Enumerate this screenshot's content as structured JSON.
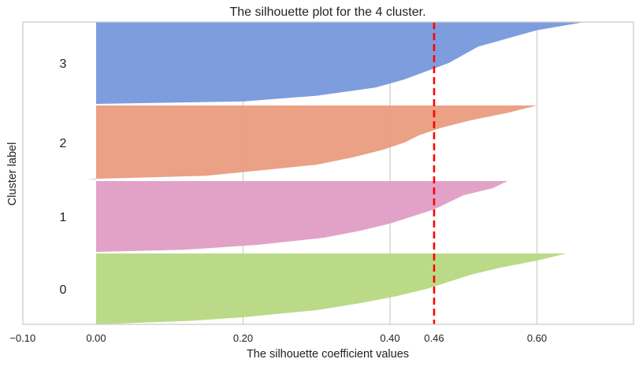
{
  "chart_data": {
    "type": "area",
    "title": "The silhouette plot for the 4 cluster.",
    "xlabel": "The silhouette coefficient values",
    "ylabel": "Cluster label",
    "xlim": [
      -0.1,
      0.74
    ],
    "xticks": [
      {
        "value": -0.1,
        "label": "−0.10"
      },
      {
        "value": 0.0,
        "label": "0.00"
      },
      {
        "value": 0.2,
        "label": "0.20"
      },
      {
        "value": 0.4,
        "label": "0.40"
      },
      {
        "value": 0.46,
        "label": "0.46"
      },
      {
        "value": 0.6,
        "label": "0.60"
      }
    ],
    "grid": true,
    "average_silhouette_score": 0.46,
    "average_line_color": "#ff0000",
    "series": [
      {
        "name": "0",
        "color": "#b5d77d",
        "profile": [
          [
            0.0,
            0.64
          ],
          [
            0.1,
            0.6
          ],
          [
            0.2,
            0.55
          ],
          [
            0.3,
            0.51
          ],
          [
            0.4,
            0.48
          ],
          [
            0.5,
            0.45
          ],
          [
            0.6,
            0.41
          ],
          [
            0.7,
            0.36
          ],
          [
            0.8,
            0.3
          ],
          [
            0.9,
            0.2
          ],
          [
            0.95,
            0.13
          ],
          [
            1.0,
            0.0
          ]
        ]
      },
      {
        "name": "1",
        "color": "#e09ac2",
        "profile": [
          [
            0.0,
            0.56
          ],
          [
            0.1,
            0.54
          ],
          [
            0.2,
            0.5
          ],
          [
            0.3,
            0.48
          ],
          [
            0.4,
            0.46
          ],
          [
            0.5,
            0.43
          ],
          [
            0.6,
            0.4
          ],
          [
            0.7,
            0.36
          ],
          [
            0.8,
            0.31
          ],
          [
            0.9,
            0.22
          ],
          [
            0.97,
            0.12
          ],
          [
            1.0,
            0.0
          ]
        ]
      },
      {
        "name": "2",
        "color": "#e8997c",
        "profile": [
          [
            0.0,
            0.6
          ],
          [
            0.1,
            0.56
          ],
          [
            0.2,
            0.51
          ],
          [
            0.3,
            0.47
          ],
          [
            0.4,
            0.44
          ],
          [
            0.5,
            0.42
          ],
          [
            0.6,
            0.39
          ],
          [
            0.7,
            0.35
          ],
          [
            0.8,
            0.3
          ],
          [
            0.9,
            0.2
          ],
          [
            0.95,
            0.15
          ],
          [
            0.99,
            0.0
          ],
          [
            1.0,
            -0.012
          ]
        ]
      },
      {
        "name": "3",
        "color": "#7395db",
        "profile": [
          [
            0.0,
            0.665
          ],
          [
            0.1,
            0.6
          ],
          [
            0.2,
            0.56
          ],
          [
            0.3,
            0.52
          ],
          [
            0.4,
            0.5
          ],
          [
            0.5,
            0.48
          ],
          [
            0.6,
            0.45
          ],
          [
            0.7,
            0.42
          ],
          [
            0.8,
            0.38
          ],
          [
            0.9,
            0.3
          ],
          [
            0.97,
            0.2
          ],
          [
            1.0,
            0.0
          ]
        ]
      }
    ]
  }
}
